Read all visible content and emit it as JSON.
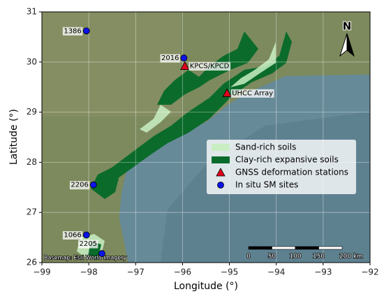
{
  "chart_data": {
    "type": "scatter",
    "xlabel": "Longitude (°)",
    "ylabel": "Latitude (°)",
    "xlim": [
      -99,
      -92
    ],
    "ylim": [
      26,
      31
    ],
    "xticks": [
      {
        "value": -99,
        "label": "−99"
      },
      {
        "value": -98,
        "label": "−98"
      },
      {
        "value": -97,
        "label": "−97"
      },
      {
        "value": -96,
        "label": "−96"
      },
      {
        "value": -95,
        "label": "−95"
      },
      {
        "value": -94,
        "label": "−94"
      },
      {
        "value": -93,
        "label": "−93"
      },
      {
        "value": -92,
        "label": "−92"
      }
    ],
    "yticks": [
      26,
      27,
      28,
      29,
      30,
      31
    ],
    "grid": true,
    "legend_patches": [
      {
        "name": "Sand-rich soils",
        "color": "#c9eec3"
      },
      {
        "name": "Clay-rich expansive soils",
        "color": "#0b6b2b"
      }
    ],
    "series": [
      {
        "name": "GNSS deformation stations",
        "color": "#e0001b",
        "marker": "triangle",
        "x": [
          -95.95,
          -95.05
        ],
        "y": [
          29.92,
          29.38
        ],
        "labels": [
          "KPCS/KPCD",
          "UHCC Array"
        ]
      },
      {
        "name": "In situ SM sites",
        "color": "#0a14e6",
        "marker": "circle",
        "x": [
          -98.05,
          -95.97,
          -97.9,
          -98.05,
          -97.72
        ],
        "y": [
          30.62,
          30.08,
          27.55,
          26.55,
          26.18
        ],
        "labels": [
          "1386",
          "2016",
          "2206",
          "1066",
          "2205"
        ]
      }
    ],
    "legend_position": "center right",
    "scale_bar": {
      "ticks": [
        0,
        50,
        100,
        150,
        {
          "value": 200,
          "label": "200 km"
        }
      ]
    },
    "north_label": "N",
    "credit": "Basemap: Esri World Imagery"
  }
}
